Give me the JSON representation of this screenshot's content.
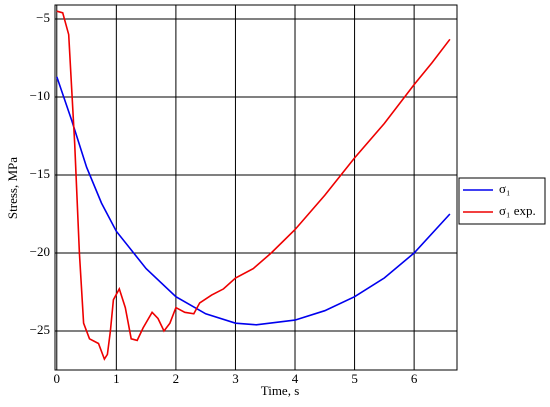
{
  "chart_data": {
    "type": "line",
    "x_label": "Time, s",
    "y_label": "Stress, MPa",
    "xlim": [
      -0.03,
      6.72
    ],
    "ylim": [
      -27.5,
      -4.1
    ],
    "xticks": [
      0,
      1,
      2,
      3,
      4,
      5,
      6
    ],
    "yticks": [
      {
        "value": -5,
        "label": "−5"
      },
      {
        "value": -10,
        "label": "−10"
      },
      {
        "value": -15,
        "label": "−15"
      },
      {
        "value": -20,
        "label": "−20"
      },
      {
        "value": -25,
        "label": "−25"
      }
    ],
    "grid": true,
    "legend": "right",
    "series": [
      {
        "name": "σ₁",
        "color": "#0000ee",
        "x": [
          0,
          0.25,
          0.5,
          0.75,
          1,
          1.5,
          2,
          2.5,
          3,
          3.35,
          4,
          4.5,
          5,
          5.5,
          6,
          6.6
        ],
        "values": [
          -8.7,
          -11.5,
          -14.5,
          -16.8,
          -18.6,
          -21.0,
          -22.8,
          -23.9,
          -24.5,
          -24.6,
          -24.3,
          -23.7,
          -22.8,
          -21.6,
          -20.0,
          -17.5
        ]
      },
      {
        "name": "σ₁ exp.",
        "color": "#ee0000",
        "x": [
          0,
          0.1,
          0.2,
          0.3,
          0.38,
          0.45,
          0.55,
          0.7,
          0.8,
          0.85,
          0.9,
          0.95,
          1.05,
          1.15,
          1.25,
          1.35,
          1.45,
          1.6,
          1.7,
          1.8,
          1.9,
          2.0,
          2.15,
          2.3,
          2.4,
          2.6,
          2.8,
          3.0,
          3.3,
          3.6,
          4.0,
          4.5,
          5.0,
          5.5,
          6.0,
          6.3,
          6.6
        ],
        "values": [
          -4.5,
          -4.6,
          -6,
          -13,
          -20,
          -24.5,
          -25.5,
          -25.8,
          -26.8,
          -26.5,
          -25,
          -23,
          -22.3,
          -23.5,
          -25.5,
          -25.6,
          -24.8,
          -23.8,
          -24.2,
          -25,
          -24.5,
          -23.5,
          -23.8,
          -23.9,
          -23.2,
          -22.7,
          -22.3,
          -21.6,
          -21.0,
          -20.0,
          -18.5,
          -16.3,
          -13.9,
          -11.7,
          -9.2,
          -7.8,
          -6.3
        ]
      }
    ]
  }
}
